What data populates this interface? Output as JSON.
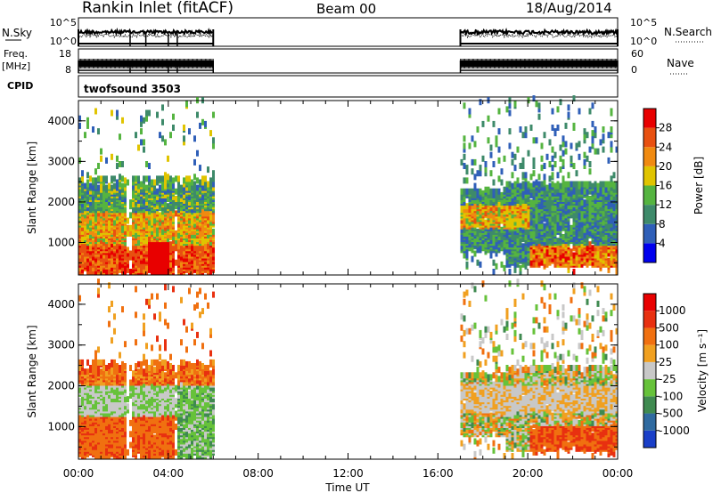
{
  "header": {
    "site": "Rankin Inlet (fitACF)",
    "beam": "Beam 00",
    "date": "18/Aug/2014"
  },
  "panels": {
    "nsky": {
      "left_label": "N.Sky",
      "right_label": "N.Search",
      "ticks_left": [
        "10^5",
        "10^0"
      ],
      "ticks_right": [
        "10^5",
        "10^0"
      ]
    },
    "freq": {
      "left_label_1": "Freq.",
      "left_label_2": "[MHz]",
      "right_label": "Nave",
      "ticks_left": [
        "18",
        "8"
      ],
      "ticks_right": [
        "60",
        "0"
      ]
    },
    "cpid": {
      "left_label": "CPID",
      "program": "twofsound 3503"
    }
  },
  "chart_data": [
    {
      "type": "heatmap",
      "name": "power",
      "ylabel": "Slant Range [km]",
      "ylim": [
        200,
        4500
      ],
      "yticks": [
        "1000",
        "2000",
        "3000",
        "4000"
      ],
      "xlim_hours": [
        0,
        24
      ],
      "colorbar": {
        "label": "Power [dB]",
        "ticks": [
          "4",
          "8",
          "12",
          "16",
          "20",
          "24",
          "28"
        ],
        "colors": [
          "#0000ee",
          "#2f5fb8",
          "#3e8a6a",
          "#55b440",
          "#e0c400",
          "#f08a10",
          "#e85010",
          "#e80000"
        ]
      },
      "data_intervals_hours": [
        [
          0,
          6
        ],
        [
          17,
          24
        ]
      ]
    },
    {
      "type": "heatmap",
      "name": "velocity",
      "ylabel": "Slant Range [km]",
      "ylim": [
        200,
        4500
      ],
      "yticks": [
        "1000",
        "2000",
        "3000",
        "4000"
      ],
      "xlim_hours": [
        0,
        24
      ],
      "colorbar": {
        "label": "Velocity [m s⁻¹]",
        "ticks": [
          "1000",
          "500",
          "100",
          "25",
          "-25",
          "-100",
          "-500",
          "-1000"
        ],
        "colors": [
          "#1a3fc8",
          "#2f6aa0",
          "#3f8a50",
          "#66c23a",
          "#c8c8c8",
          "#f0a020",
          "#f07010",
          "#e83010",
          "#e80000"
        ]
      },
      "data_intervals_hours": [
        [
          0,
          6
        ],
        [
          17,
          24
        ]
      ]
    }
  ],
  "xaxis": {
    "label": "Time UT",
    "ticks": [
      "00:00",
      "04:00",
      "08:00",
      "12:00",
      "16:00",
      "20:00",
      "00:00"
    ]
  }
}
